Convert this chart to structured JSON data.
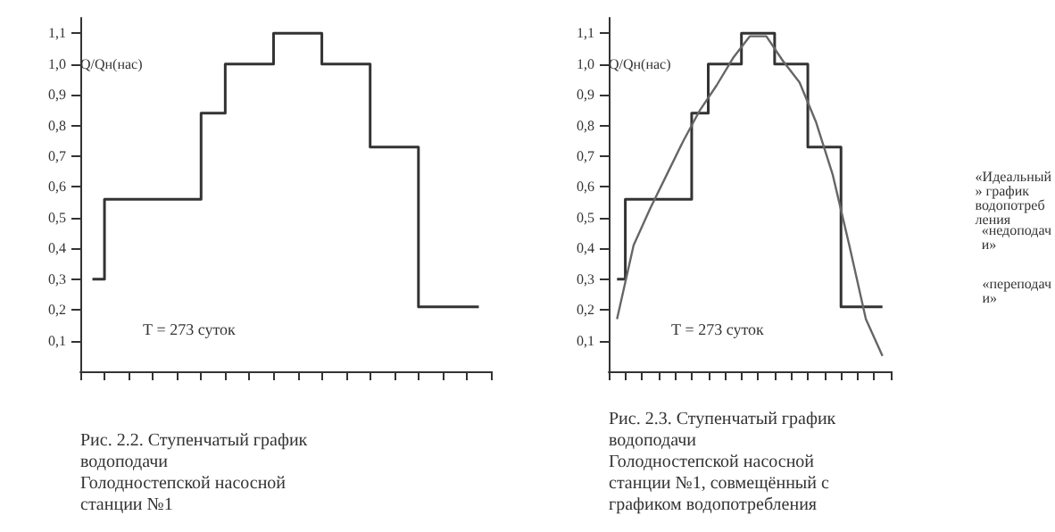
{
  "chart_data": [
    {
      "type": "step",
      "title": "Рис. 2.2. Ступенчатый график водоподачи Голодностепской насосной станции №1",
      "ylabel": "Q/Qн(нас)",
      "categories": [
        null,
        null,
        null,
        null,
        null,
        null,
        null,
        null,
        null,
        null,
        null,
        null,
        null,
        null,
        null,
        null,
        null
      ],
      "values": [
        0.3,
        0.56,
        0.56,
        0.56,
        0.56,
        0.84,
        1.0,
        1.0,
        1.1,
        1.1,
        1.0,
        1.0,
        0.73,
        0.73,
        0.21,
        0.21,
        0.21
      ],
      "color": "#333333",
      "ylim": [
        0,
        1.15
      ],
      "yticks": [
        {
          "value": 0.1,
          "label": "0,1"
        },
        {
          "value": 0.2,
          "label": "0,2"
        },
        {
          "value": 0.3,
          "label": "0,3"
        },
        {
          "value": 0.4,
          "label": "0,4"
        },
        {
          "value": 0.5,
          "label": "0,5"
        },
        {
          "value": 0.6,
          "label": "0,6"
        },
        {
          "value": 0.7,
          "label": "0,7"
        },
        {
          "value": 0.8,
          "label": "0,8"
        },
        {
          "value": 0.9,
          "label": "0,9"
        },
        {
          "value": 1.0,
          "label": "1,0"
        },
        {
          "value": 1.1,
          "label": "1,1"
        }
      ],
      "annotations": [
        "Т = 273 суток"
      ]
    },
    {
      "type": "step",
      "title": "Рис. 2.3. Ступенчатый график водоподачи Голодностепской насосной станции №1, совмещённый с графиком водопотребления",
      "ylabel": "Q/Qн(нас)",
      "categories": [
        null,
        null,
        null,
        null,
        null,
        null,
        null,
        null,
        null,
        null,
        null,
        null,
        null,
        null,
        null,
        null,
        null
      ],
      "series": [
        {
          "color": "#333333",
          "values": [
            0.3,
            0.56,
            0.56,
            0.56,
            0.56,
            0.84,
            1.0,
            1.0,
            1.1,
            1.1,
            1.0,
            1.0,
            0.73,
            0.73,
            0.21,
            0.21,
            0.21
          ]
        },
        {
          "type": "line",
          "color": "#666666",
          "values": [
            0.17,
            0.41,
            0.53,
            0.64,
            0.75,
            0.85,
            0.93,
            1.02,
            1.09,
            1.09,
            1.01,
            0.94,
            0.81,
            0.64,
            0.41,
            0.17,
            0.05
          ]
        }
      ],
      "ylim": [
        0,
        1.15
      ],
      "yticks": [
        {
          "value": 0.1,
          "label": "0,1"
        },
        {
          "value": 0.2,
          "label": "0,2"
        },
        {
          "value": 0.3,
          "label": "0,3"
        },
        {
          "value": 0.4,
          "label": "0,4"
        },
        {
          "value": 0.5,
          "label": "0,5"
        },
        {
          "value": 0.6,
          "label": "0,6"
        },
        {
          "value": 0.7,
          "label": "0,7"
        },
        {
          "value": 0.8,
          "label": "0,8"
        },
        {
          "value": 0.9,
          "label": "0,9"
        },
        {
          "value": 1.0,
          "label": "1,0"
        },
        {
          "value": 1.1,
          "label": "1,1"
        }
      ],
      "annotations": [
        "«Идеальный» график водопотребления",
        "«недоподачи»",
        "«переподачи»",
        "Т = 273 суток"
      ]
    }
  ]
}
